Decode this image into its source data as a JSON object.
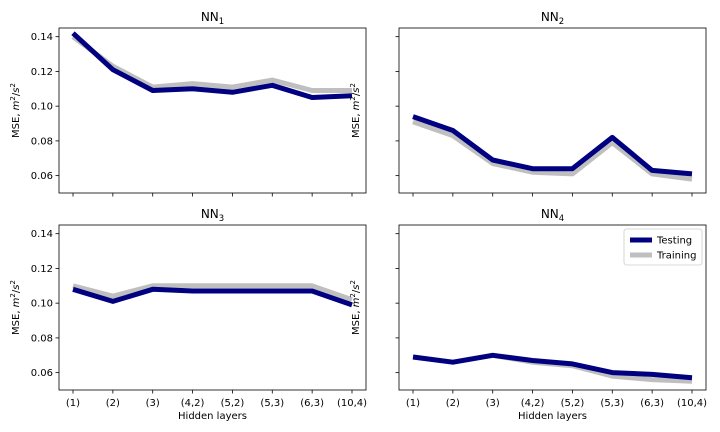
{
  "chart_data": [
    {
      "type": "line",
      "title_main": "NN",
      "title_sub": "1",
      "ylabel_prefix": "MSE, ",
      "ylabel_var": "m",
      "ylabel_exp1": "2",
      "ylabel_mid": "/",
      "ylabel_var2": "s",
      "ylabel_exp2": "2",
      "xlabel": "",
      "ylim": [
        0.05,
        0.145
      ],
      "yticks": [
        "0.06",
        "0.08",
        "0.10",
        "0.12",
        "0.14"
      ],
      "categories": [
        "(1)",
        "(2)",
        "(3)",
        "(4,2)",
        "(5,2)",
        "(5,3)",
        "(6,3)",
        "(10,4)"
      ],
      "series": [
        {
          "name": "Testing",
          "color": "#000080",
          "values": [
            0.142,
            0.121,
            0.109,
            0.11,
            0.108,
            0.112,
            0.105,
            0.106
          ]
        },
        {
          "name": "Training",
          "color": "#bfbfbf",
          "values": [
            0.14,
            0.123,
            0.111,
            0.113,
            0.111,
            0.115,
            0.109,
            0.109
          ]
        }
      ]
    },
    {
      "type": "line",
      "title_main": "NN",
      "title_sub": "2",
      "ylabel_prefix": "MSE, ",
      "ylabel_var": "m",
      "ylabel_exp1": "2",
      "ylabel_mid": "/",
      "ylabel_var2": "s",
      "ylabel_exp2": "2",
      "xlabel": "",
      "ylim": [
        0.05,
        0.145
      ],
      "yticks": [
        "",
        "",
        "",
        "",
        ""
      ],
      "categories": [
        "(1)",
        "(2)",
        "(3)",
        "(4,2)",
        "(5,2)",
        "(5,3)",
        "(6,3)",
        "(10,4)"
      ],
      "series": [
        {
          "name": "Testing",
          "color": "#000080",
          "values": [
            0.094,
            0.086,
            0.069,
            0.064,
            0.064,
            0.082,
            0.063,
            0.061
          ]
        },
        {
          "name": "Training",
          "color": "#bfbfbf",
          "values": [
            0.091,
            0.083,
            0.067,
            0.062,
            0.061,
            0.079,
            0.061,
            0.058
          ]
        }
      ]
    },
    {
      "type": "line",
      "title_main": "NN",
      "title_sub": "3",
      "ylabel_prefix": "MSE, ",
      "ylabel_var": "m",
      "ylabel_exp1": "2",
      "ylabel_mid": "/",
      "ylabel_var2": "s",
      "ylabel_exp2": "2",
      "xlabel": "Hidden layers",
      "ylim": [
        0.05,
        0.145
      ],
      "yticks": [
        "0.06",
        "0.08",
        "0.10",
        "0.12",
        "0.14"
      ],
      "categories": [
        "(1)",
        "(2)",
        "(3)",
        "(4,2)",
        "(5,2)",
        "(5,3)",
        "(6,3)",
        "(10,4)"
      ],
      "series": [
        {
          "name": "Testing",
          "color": "#000080",
          "values": [
            0.108,
            0.101,
            0.108,
            0.107,
            0.107,
            0.107,
            0.107,
            0.099
          ]
        },
        {
          "name": "Training",
          "color": "#bfbfbf",
          "values": [
            0.11,
            0.104,
            0.11,
            0.11,
            0.11,
            0.11,
            0.11,
            0.102
          ]
        }
      ]
    },
    {
      "type": "line",
      "title_main": "NN",
      "title_sub": "4",
      "ylabel_prefix": "MSE, ",
      "ylabel_var": "m",
      "ylabel_exp1": "2",
      "ylabel_mid": "/",
      "ylabel_var2": "s",
      "ylabel_exp2": "2",
      "xlabel": "Hidden layers",
      "ylim": [
        0.05,
        0.145
      ],
      "yticks": [
        "",
        "",
        "",
        "",
        ""
      ],
      "legend": "top-right",
      "categories": [
        "(1)",
        "(2)",
        "(3)",
        "(4,2)",
        "(5,2)",
        "(5,3)",
        "(6,3)",
        "(10,4)"
      ],
      "series": [
        {
          "name": "Testing",
          "color": "#000080",
          "values": [
            0.069,
            0.066,
            0.07,
            0.067,
            0.065,
            0.06,
            0.059,
            0.057
          ]
        },
        {
          "name": "Training",
          "color": "#bfbfbf",
          "values": [
            0.069,
            0.066,
            0.07,
            0.066,
            0.064,
            0.058,
            0.056,
            0.055
          ]
        }
      ]
    }
  ]
}
